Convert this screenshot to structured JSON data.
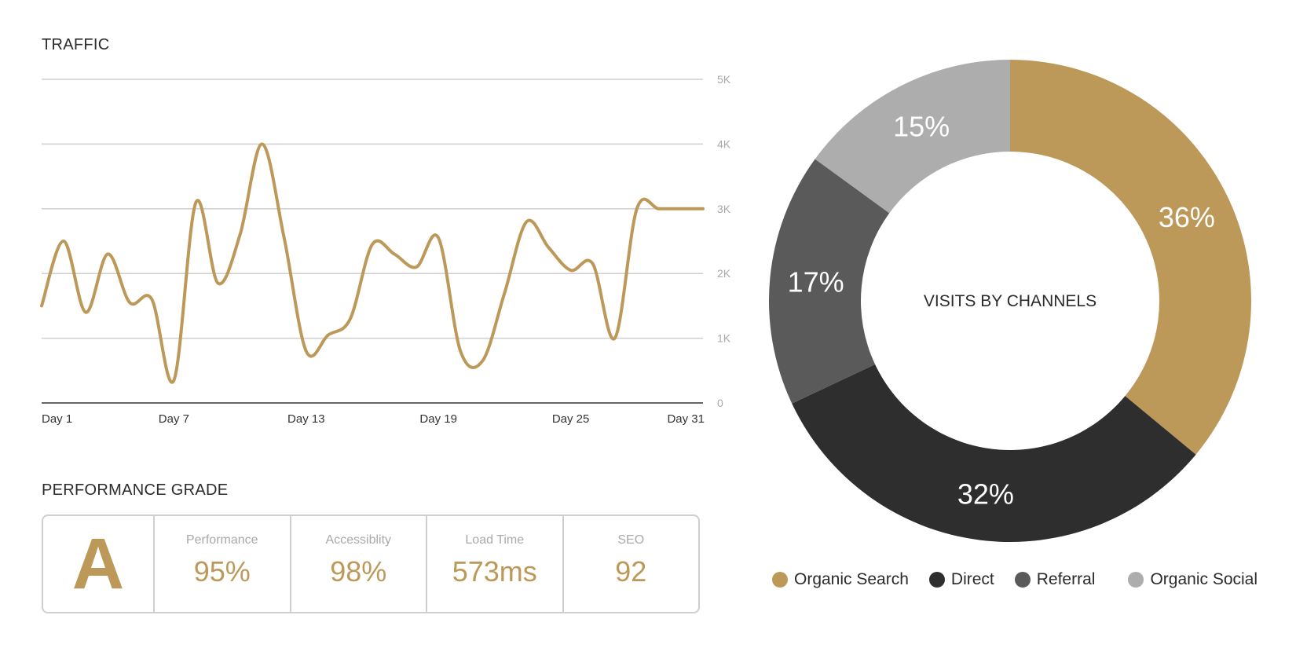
{
  "traffic": {
    "title": "TRAFFIC"
  },
  "performance": {
    "title": "PERFORMANCE GRADE",
    "grade": "A",
    "metrics": [
      {
        "label": "Performance",
        "value": "95%"
      },
      {
        "label": "Accessiblity",
        "value": "98%"
      },
      {
        "label": "Load Time",
        "value": "573ms"
      },
      {
        "label": "SEO",
        "value": "92"
      }
    ]
  },
  "colors": {
    "accent": "#bd9959",
    "direct": "#2e2e2e",
    "referral": "#5a5a5a",
    "organic_social": "#adadad",
    "grid": "#cfcfcf",
    "axis": "#333333"
  },
  "chart_data": [
    {
      "type": "line",
      "title": "TRAFFIC",
      "x_tick_labels": [
        "Day 1",
        "Day 7",
        "Day 13",
        "Day 19",
        "Day 25",
        "Day 31"
      ],
      "y_tick_labels": [
        "0",
        "1K",
        "2K",
        "3K",
        "4K",
        "5K"
      ],
      "ylim": [
        0,
        5000
      ],
      "xlim": [
        1,
        31
      ],
      "grid": true,
      "series": [
        {
          "x": [
            1,
            2,
            3,
            4,
            5,
            6,
            7,
            8,
            9,
            10,
            11,
            12,
            13,
            14,
            15,
            16,
            17,
            18,
            19,
            20,
            21,
            22,
            23,
            24,
            25,
            26,
            27,
            28,
            29,
            30,
            31
          ],
          "values": [
            1500,
            2500,
            1400,
            2300,
            1550,
            1600,
            350,
            3100,
            1850,
            2600,
            4000,
            2550,
            800,
            1050,
            1300,
            2450,
            2300,
            2100,
            2550,
            800,
            650,
            1700,
            2800,
            2400,
            2050,
            2150,
            1000,
            3000,
            3000,
            3000,
            3000
          ]
        }
      ]
    },
    {
      "type": "pie",
      "title": "VISITS BY CHANNELS",
      "labels": [
        "Organic Search",
        "Direct",
        "Referral",
        "Organic Social"
      ],
      "values": [
        36,
        32,
        17,
        15
      ],
      "value_labels": [
        "36%",
        "32%",
        "17%",
        "15%"
      ],
      "colors": [
        "#bd9959",
        "#2e2e2e",
        "#5a5a5a",
        "#adadad"
      ],
      "legend": "bottom"
    }
  ]
}
